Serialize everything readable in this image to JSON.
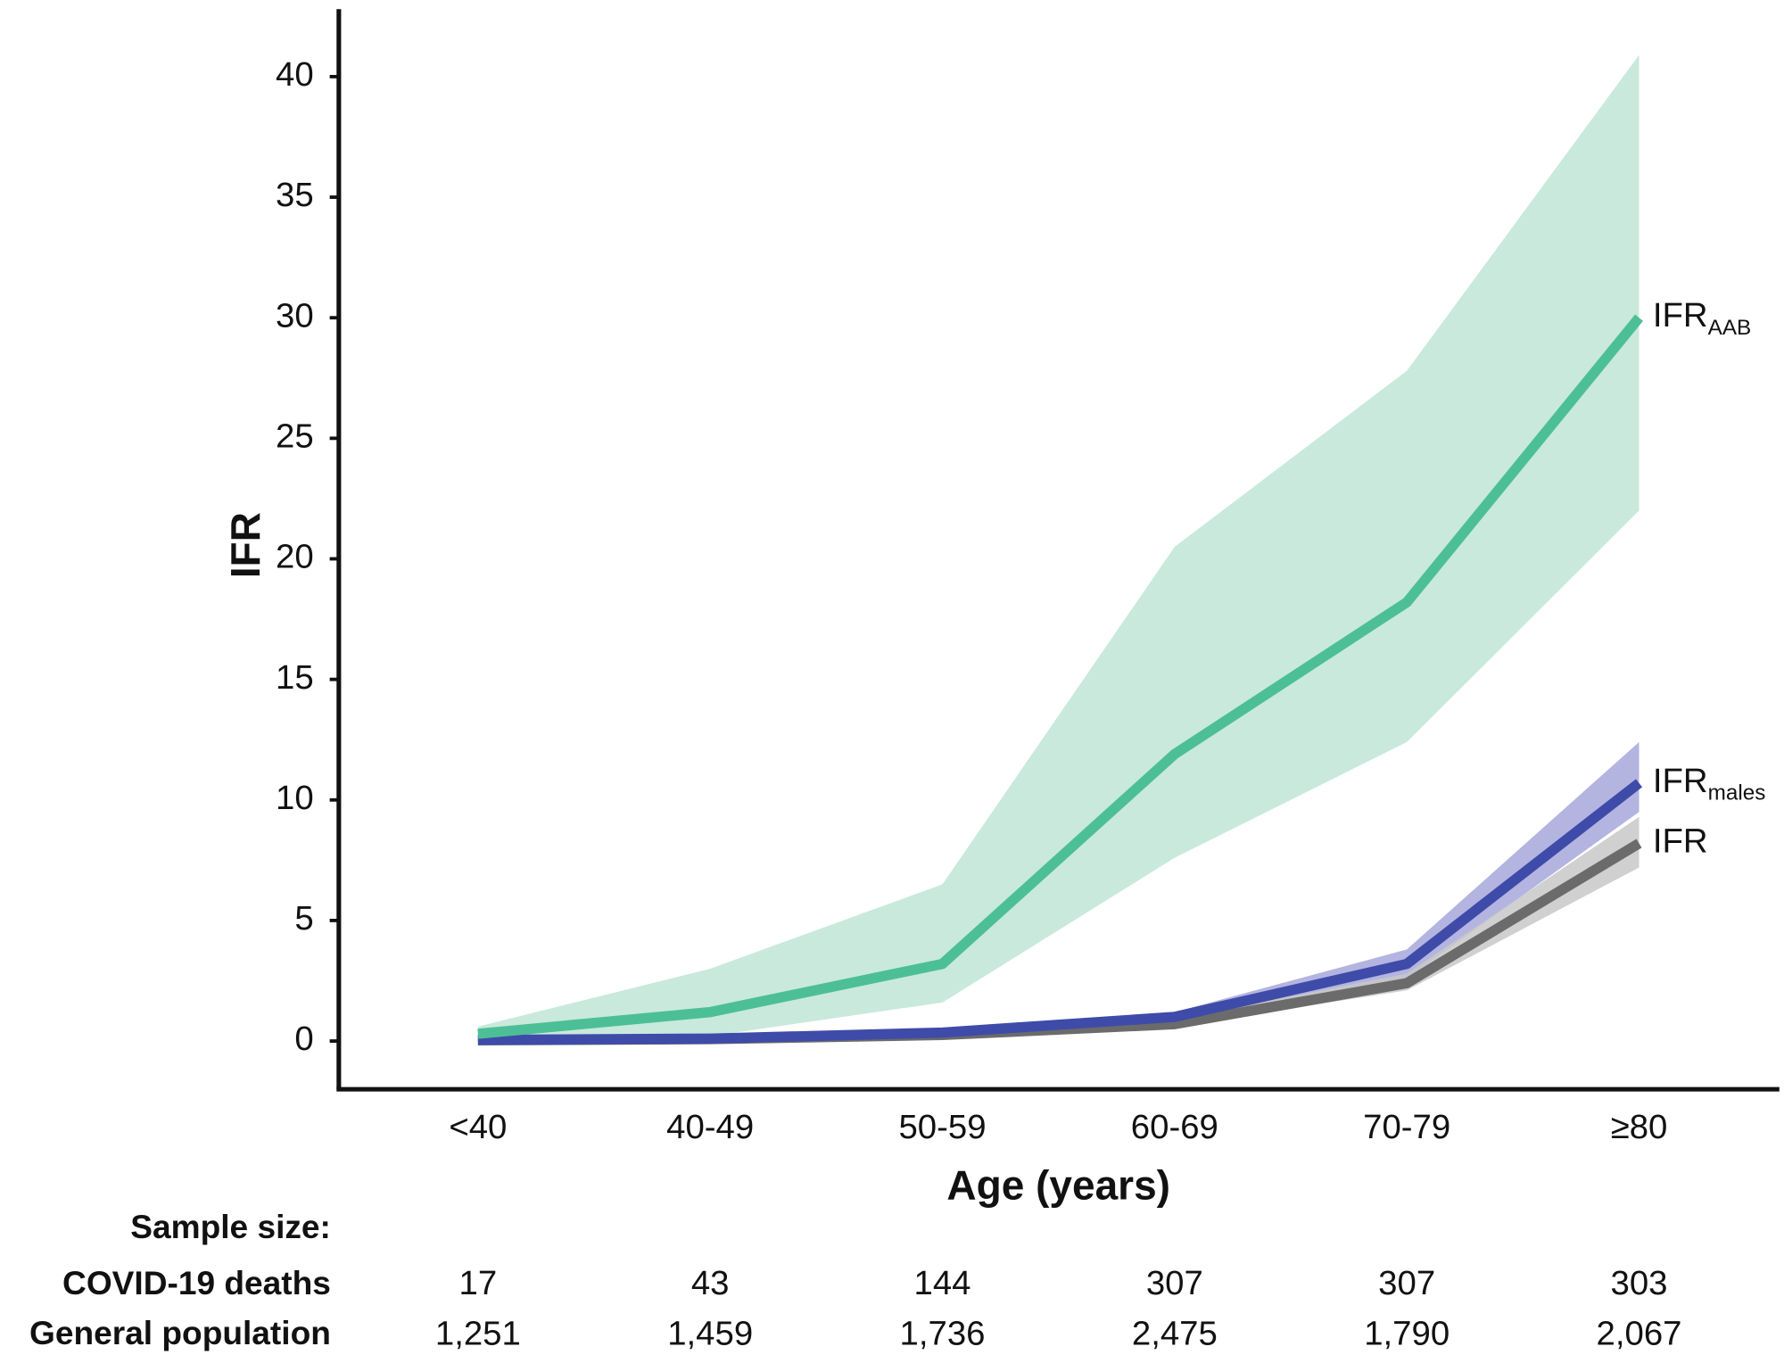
{
  "chart_data": {
    "type": "line",
    "xlabel": "Age (years)",
    "ylabel": "IFR",
    "categories": [
      "<40",
      "40-49",
      "50-59",
      "60-69",
      "70-79",
      "≥80"
    ],
    "ylim": [
      -2,
      42.8
    ],
    "yticks": [
      0,
      5,
      10,
      15,
      20,
      25,
      30,
      35,
      40
    ],
    "series": [
      {
        "name": "IFR",
        "name_sub": "AAB",
        "color": "#4dbf96",
        "band_color": "#c0e5d7",
        "values": [
          0.3,
          1.2,
          3.2,
          11.9,
          18.2,
          30.0
        ],
        "lower": [
          0.1,
          0.2,
          1.6,
          7.6,
          12.4,
          22.0
        ],
        "upper": [
          0.6,
          3.0,
          6.5,
          20.5,
          27.8,
          40.9
        ]
      },
      {
        "name": "IFR",
        "name_sub": "males",
        "color": "#3f4ba8",
        "band_color": "#a7a7dc",
        "values": [
          0.05,
          0.1,
          0.35,
          1.0,
          3.2,
          10.7
        ],
        "lower": [
          0.03,
          0.08,
          0.25,
          0.8,
          2.6,
          9.5
        ],
        "upper": [
          0.1,
          0.15,
          0.45,
          1.2,
          3.8,
          12.4
        ]
      },
      {
        "name": "IFR",
        "color": "#6b6b6b",
        "band_color": "#c8c8c8",
        "values": [
          0.03,
          0.08,
          0.25,
          0.7,
          2.4,
          8.2
        ],
        "lower": [
          0.02,
          0.05,
          0.2,
          0.6,
          2.1,
          7.2
        ],
        "upper": [
          0.05,
          0.12,
          0.3,
          0.9,
          2.8,
          9.3
        ]
      }
    ],
    "table": {
      "title": "Sample size:",
      "rows": [
        {
          "label": "COVID-19 deaths",
          "values": [
            17,
            43,
            144,
            307,
            307,
            303
          ]
        },
        {
          "label": "General population",
          "values": [
            1251,
            1459,
            1736,
            2475,
            1790,
            2067
          ],
          "value_labels": [
            "1,251",
            "1,459",
            "1,736",
            "2,475",
            "1,790",
            "2,067"
          ]
        }
      ]
    }
  }
}
